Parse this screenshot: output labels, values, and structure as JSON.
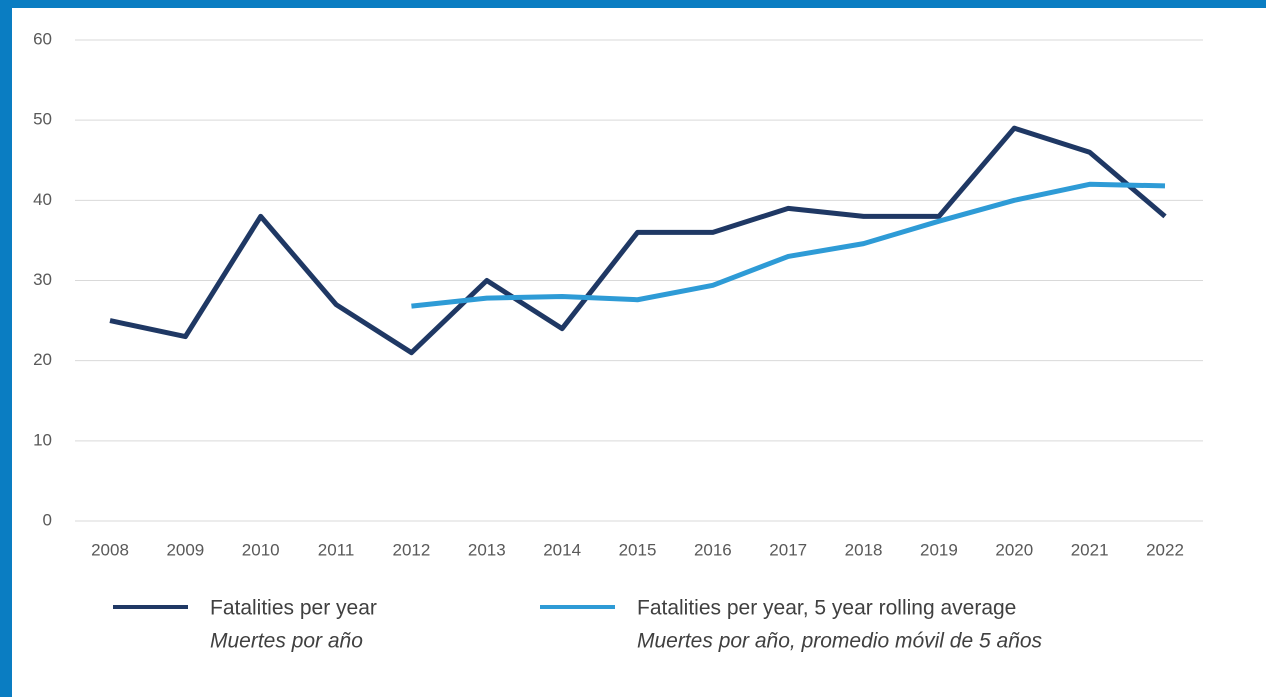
{
  "chart_data": {
    "type": "line",
    "categories": [
      "2008",
      "2009",
      "2010",
      "2011",
      "2012",
      "2013",
      "2014",
      "2015",
      "2016",
      "2017",
      "2018",
      "2019",
      "2020",
      "2021",
      "2022"
    ],
    "series": [
      {
        "name": "Fatalities per year",
        "name_es": "Muertes por año",
        "color": "#1f3864",
        "values": [
          25,
          23,
          38,
          27,
          21,
          30,
          24,
          36,
          36,
          39,
          38,
          38,
          49,
          46,
          38
        ]
      },
      {
        "name": "Fatalities per year, 5 year rolling average",
        "name_es": "Muertes por año, promedio móvil de 5 años",
        "color": "#2e9bd6",
        "values": [
          null,
          null,
          null,
          null,
          26.8,
          27.8,
          28,
          27.6,
          29.4,
          33,
          34.6,
          37.4,
          40,
          42,
          41.8
        ]
      }
    ],
    "ylim": [
      0,
      60
    ],
    "yticks": [
      0,
      10,
      20,
      30,
      40,
      50,
      60
    ],
    "grid": true,
    "legend": "bottom"
  }
}
